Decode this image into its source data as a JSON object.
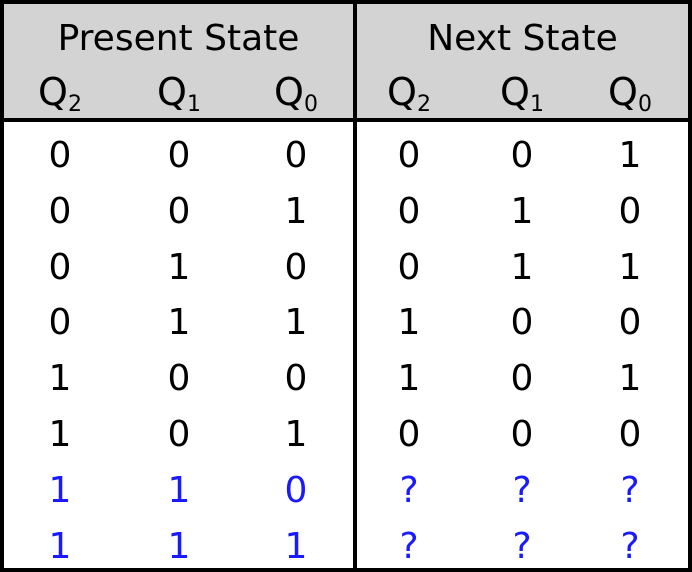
{
  "headers": {
    "present_state": "Present State",
    "next_state": "Next State"
  },
  "columns": [
    {
      "letter": "Q",
      "sub": "2"
    },
    {
      "letter": "Q",
      "sub": "1"
    },
    {
      "letter": "Q",
      "sub": "0"
    },
    {
      "letter": "Q",
      "sub": "2"
    },
    {
      "letter": "Q",
      "sub": "1"
    },
    {
      "letter": "Q",
      "sub": "0"
    }
  ],
  "rows": [
    {
      "cells": [
        "0",
        "0",
        "0",
        "0",
        "0",
        "1"
      ],
      "color": "#000000"
    },
    {
      "cells": [
        "0",
        "0",
        "1",
        "0",
        "1",
        "0"
      ],
      "color": "#000000"
    },
    {
      "cells": [
        "0",
        "1",
        "0",
        "0",
        "1",
        "1"
      ],
      "color": "#000000"
    },
    {
      "cells": [
        "0",
        "1",
        "1",
        "1",
        "0",
        "0"
      ],
      "color": "#000000"
    },
    {
      "cells": [
        "1",
        "0",
        "0",
        "1",
        "0",
        "1"
      ],
      "color": "#000000"
    },
    {
      "cells": [
        "1",
        "0",
        "1",
        "0",
        "0",
        "0"
      ],
      "color": "#000000"
    },
    {
      "cells": [
        "1",
        "1",
        "0",
        "?",
        "?",
        "?"
      ],
      "color": "#1a1aff"
    },
    {
      "cells": [
        "1",
        "1",
        "1",
        "?",
        "?",
        "?"
      ],
      "color": "#1a1aff"
    }
  ],
  "colors": {
    "header_bg": "#d3d3d3",
    "text": "#000000",
    "unused_state": "#1a1aff"
  }
}
